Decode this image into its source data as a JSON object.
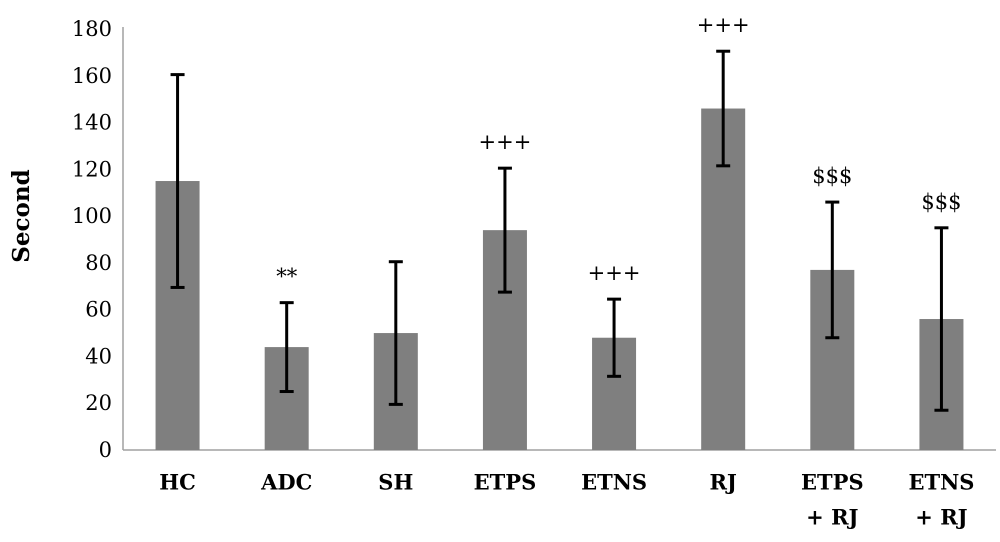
{
  "chart_data": {
    "type": "bar",
    "title": "",
    "xlabel": "",
    "ylabel": "Second",
    "ylim": [
      0,
      180
    ],
    "yticks": [
      0,
      20,
      40,
      60,
      80,
      100,
      120,
      140,
      160,
      180
    ],
    "grid": false,
    "categories": [
      [
        "HC"
      ],
      [
        "ADC"
      ],
      [
        "SH"
      ],
      [
        "ETPS"
      ],
      [
        "ETNS"
      ],
      [
        "RJ"
      ],
      [
        "ETPS",
        "+ RJ"
      ],
      [
        "ETNS",
        "+ RJ"
      ]
    ],
    "values": [
      115,
      44,
      50,
      94,
      48,
      146,
      77,
      56
    ],
    "error": [
      45.5,
      19,
      30.5,
      26.5,
      16.5,
      24.5,
      29,
      39
    ],
    "annotations": [
      "",
      "**",
      "",
      "+++",
      "+++",
      "+++",
      "$$$",
      "$$$"
    ],
    "bar_color": "#7f7f7f",
    "error_color": "#000000"
  }
}
